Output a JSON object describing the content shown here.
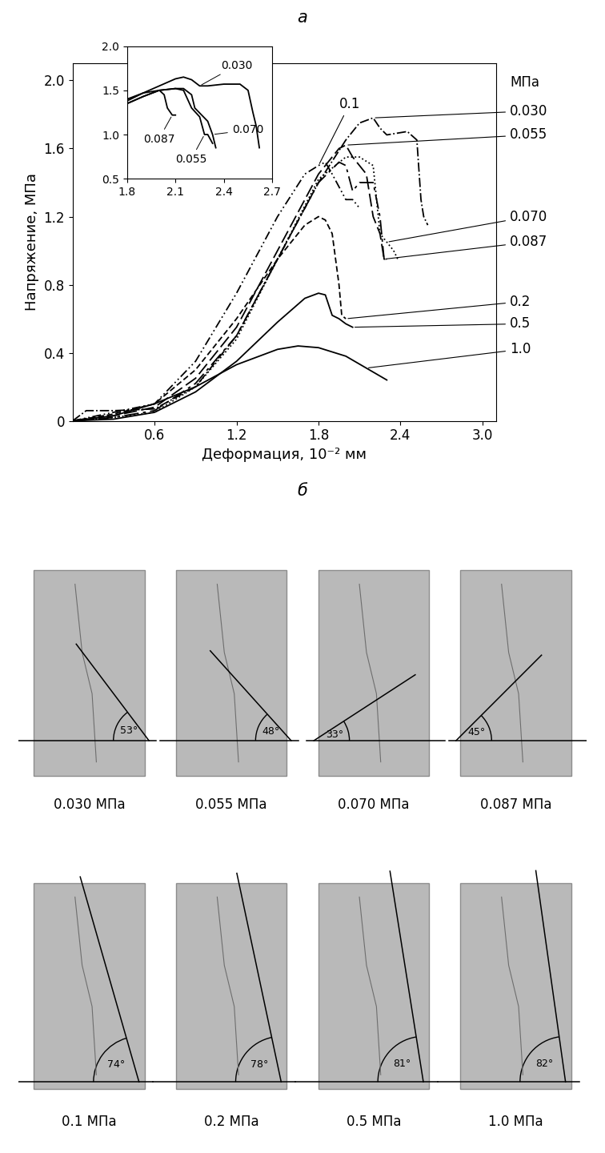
{
  "chart_data": [
    {
      "type": "line",
      "title": "а",
      "x_label": "Деформация, 10⁻² мм",
      "y_label": "Напряжение, МПа",
      "annotations": [
        "МПа"
      ],
      "xlim": [
        0,
        3.1
      ],
      "xticks": [
        0.6,
        1.2,
        1.8,
        2.4,
        3.0
      ],
      "ylim": [
        0,
        2.1
      ],
      "yticks": [
        0,
        0.4,
        0.8,
        1.2,
        1.6,
        2.0
      ],
      "series": [
        {
          "name": "0.030",
          "color": "#000000",
          "line_style": "dashdot",
          "x": [
            0,
            0.1,
            0.3,
            0.6,
            0.9,
            1.2,
            1.5,
            1.8,
            2.0,
            2.1,
            2.2,
            2.25,
            2.3,
            2.45,
            2.52,
            2.55,
            2.57,
            2.6
          ],
          "values": [
            0,
            0.06,
            0.06,
            0.07,
            0.2,
            0.5,
            0.95,
            1.4,
            1.65,
            1.75,
            1.78,
            1.72,
            1.68,
            1.7,
            1.65,
            1.3,
            1.2,
            1.15
          ]
        },
        {
          "name": "0.055",
          "color": "#000000",
          "line_style": "longdash",
          "x": [
            0,
            0.3,
            0.6,
            0.9,
            1.2,
            1.5,
            1.8,
            1.95,
            2.0,
            2.05,
            2.1,
            2.15,
            2.2,
            2.25,
            2.28,
            2.3
          ],
          "values": [
            0,
            0.03,
            0.08,
            0.25,
            0.55,
            1.0,
            1.45,
            1.6,
            1.62,
            1.55,
            1.5,
            1.45,
            1.2,
            1.1,
            0.95,
            0.95
          ]
        },
        {
          "name": "0.070",
          "color": "#000000",
          "line_style": "dotted",
          "x": [
            0,
            0.3,
            0.6,
            0.9,
            1.2,
            1.5,
            1.8,
            2.0,
            2.1,
            2.2,
            2.25,
            2.3,
            2.35,
            2.38
          ],
          "values": [
            0,
            0.02,
            0.05,
            0.2,
            0.48,
            0.95,
            1.42,
            1.55,
            1.55,
            1.5,
            1.1,
            1.05,
            1.0,
            0.95
          ]
        },
        {
          "name": "0.087",
          "color": "#000000",
          "line_style": "longdashdot",
          "x": [
            0,
            0.3,
            0.6,
            0.9,
            1.2,
            1.5,
            1.8,
            1.95,
            2.0,
            2.05,
            2.1,
            2.2,
            2.25,
            2.28,
            2.3
          ],
          "values": [
            0,
            0.02,
            0.06,
            0.22,
            0.5,
            0.95,
            1.4,
            1.52,
            1.5,
            1.35,
            1.4,
            1.4,
            1.2,
            0.95,
            0.95
          ]
        },
        {
          "name": "0.1",
          "color": "#000000",
          "line_style": "dashdotdot",
          "x": [
            0,
            0.3,
            0.6,
            0.9,
            1.2,
            1.5,
            1.7,
            1.8,
            1.85,
            1.9,
            2.0,
            2.05,
            2.1
          ],
          "values": [
            0,
            0.05,
            0.1,
            0.35,
            0.75,
            1.2,
            1.45,
            1.5,
            1.52,
            1.45,
            1.3,
            1.3,
            1.25
          ]
        },
        {
          "name": "0.2",
          "color": "#000000",
          "line_style": "dashed",
          "x": [
            0,
            0.3,
            0.6,
            0.9,
            1.2,
            1.5,
            1.7,
            1.8,
            1.85,
            1.9,
            1.95,
            1.97,
            2.0
          ],
          "values": [
            0,
            0.04,
            0.1,
            0.3,
            0.6,
            0.95,
            1.15,
            1.2,
            1.18,
            1.1,
            0.8,
            0.62,
            0.6
          ]
        },
        {
          "name": "0.5",
          "color": "#000000",
          "line_style": "solid",
          "x": [
            0,
            0.3,
            0.6,
            0.9,
            1.2,
            1.5,
            1.7,
            1.8,
            1.85,
            1.9,
            1.95,
            2.0,
            2.05
          ],
          "values": [
            0,
            0.01,
            0.05,
            0.17,
            0.35,
            0.58,
            0.72,
            0.75,
            0.74,
            0.62,
            0.6,
            0.57,
            0.55
          ]
        },
        {
          "name": "1.0",
          "color": "#000000",
          "line_style": "solid",
          "x": [
            0,
            0.3,
            0.6,
            0.9,
            1.2,
            1.5,
            1.65,
            1.8,
            2.0,
            2.15,
            2.3
          ],
          "values": [
            0,
            0.03,
            0.1,
            0.2,
            0.33,
            0.42,
            0.44,
            0.43,
            0.38,
            0.31,
            0.24
          ]
        }
      ]
    },
    {
      "type": "line",
      "xlim": [
        1.8,
        2.7
      ],
      "xticks": [
        1.8,
        2.1,
        2.4,
        2.7
      ],
      "ylim": [
        0.5,
        2.0
      ],
      "yticks": [
        0.5,
        1.0,
        1.5,
        2.0
      ],
      "series": [
        {
          "name": "0.030",
          "color": "#000000",
          "line_style": "solid",
          "x": [
            1.8,
            1.9,
            2.0,
            2.1,
            2.15,
            2.2,
            2.25,
            2.3,
            2.4,
            2.5,
            2.55,
            2.58,
            2.6,
            2.62
          ],
          "values": [
            1.38,
            1.47,
            1.55,
            1.63,
            1.65,
            1.62,
            1.55,
            1.55,
            1.57,
            1.57,
            1.5,
            1.25,
            1.1,
            0.85
          ]
        },
        {
          "name": "0.055",
          "color": "#000000",
          "line_style": "solid",
          "x": [
            1.8,
            1.9,
            2.0,
            2.1,
            2.15,
            2.2,
            2.25,
            2.28,
            2.3,
            2.33
          ],
          "values": [
            1.35,
            1.43,
            1.5,
            1.52,
            1.5,
            1.3,
            1.2,
            1.0,
            1.0,
            0.9
          ]
        },
        {
          "name": "0.070",
          "color": "#000000",
          "line_style": "solid",
          "x": [
            1.8,
            1.9,
            2.0,
            2.1,
            2.15,
            2.2,
            2.22,
            2.3,
            2.33,
            2.35
          ],
          "values": [
            1.35,
            1.43,
            1.5,
            1.52,
            1.52,
            1.45,
            1.3,
            1.15,
            1.0,
            0.85
          ]
        },
        {
          "name": "0.087",
          "color": "#000000",
          "line_style": "solid",
          "x": [
            1.8,
            1.9,
            2.0,
            2.03,
            2.05,
            2.08,
            2.1
          ],
          "values": [
            1.4,
            1.47,
            1.5,
            1.45,
            1.3,
            1.22,
            1.22
          ]
        }
      ]
    }
  ],
  "photo_panel": {
    "title": "б",
    "specimens": [
      {
        "pressure_label": "0.030 МПа",
        "angle": 53,
        "angle_label": "53°"
      },
      {
        "pressure_label": "0.055 МПа",
        "angle": 48,
        "angle_label": "48°"
      },
      {
        "pressure_label": "0.070 МПа",
        "angle": 33,
        "angle_label": "33°"
      },
      {
        "pressure_label": "0.087 МПа",
        "angle": 45,
        "angle_label": "45°"
      },
      {
        "pressure_label": "0.1 МПа",
        "angle": 74,
        "angle_label": "74°"
      },
      {
        "pressure_label": "0.2 МПа",
        "angle": 78,
        "angle_label": "78°"
      },
      {
        "pressure_label": "0.5 МПа",
        "angle": 81,
        "angle_label": "81°"
      },
      {
        "pressure_label": "1.0 МПа",
        "angle": 82,
        "angle_label": "82°"
      }
    ]
  }
}
